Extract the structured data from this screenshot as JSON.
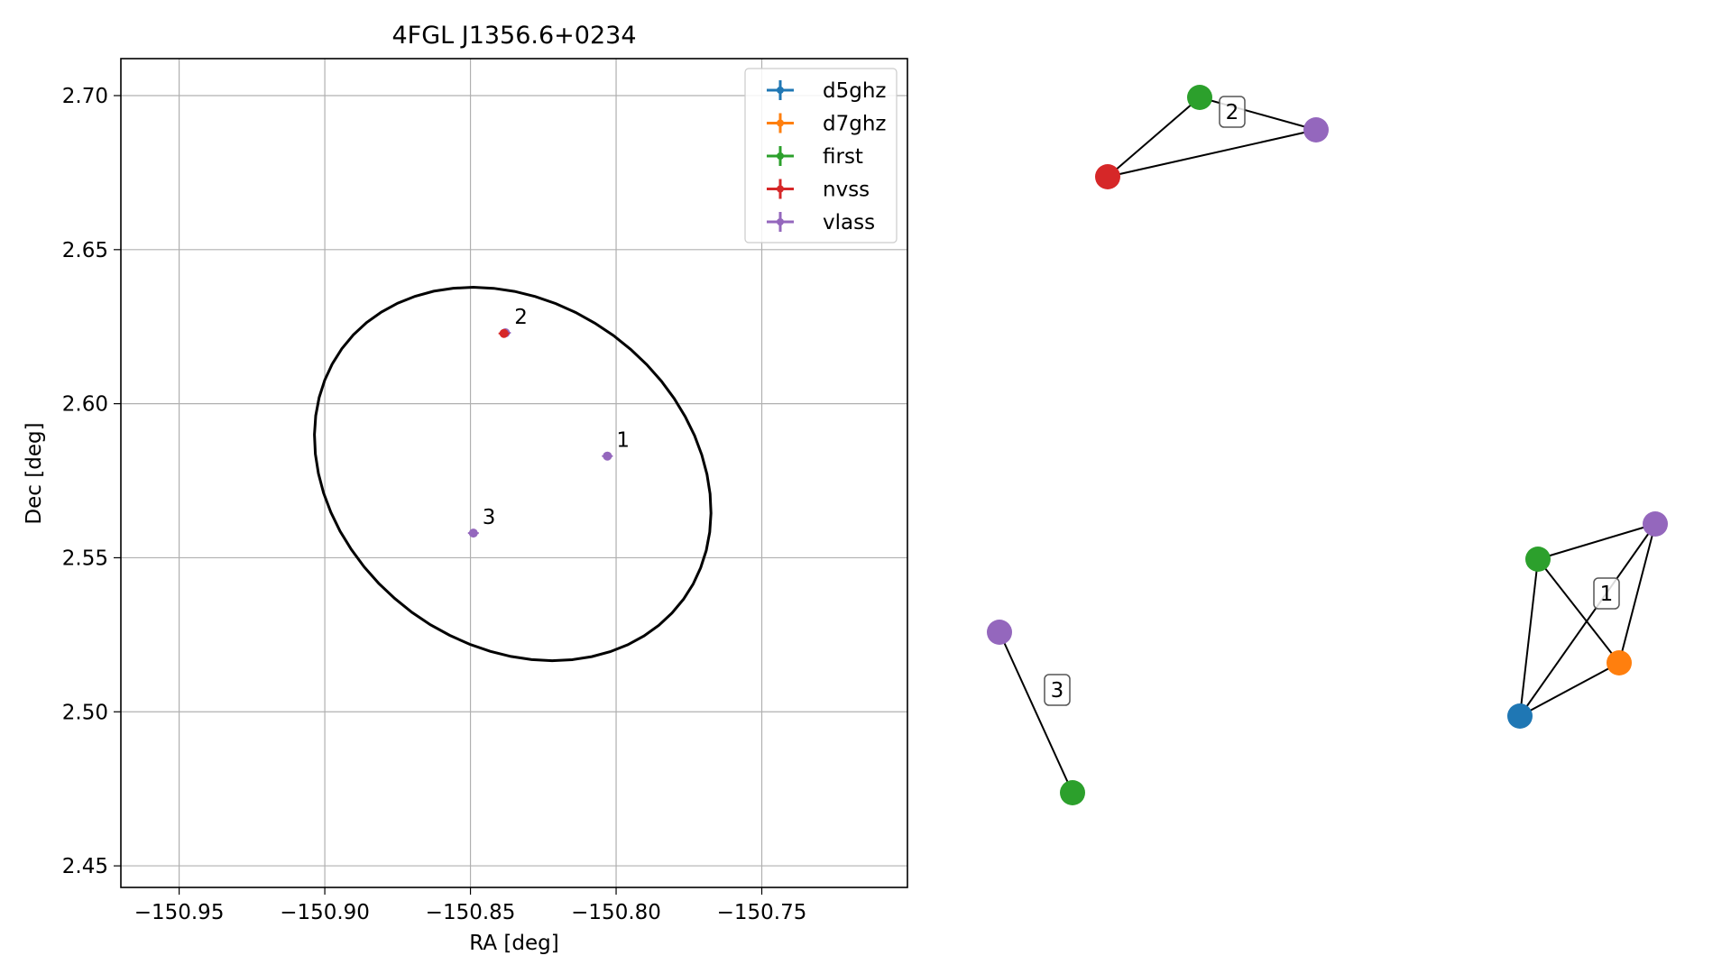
{
  "chart_data": [
    {
      "type": "scatter",
      "title": "4FGL J1356.6+0234",
      "xlabel": "RA [deg]",
      "ylabel": "Dec [deg]",
      "xlim": [
        -150.97,
        -150.7
      ],
      "ylim": [
        2.443,
        2.712
      ],
      "xticks": [
        -150.95,
        -150.9,
        -150.85,
        -150.8,
        -150.75
      ],
      "xtick_labels": [
        "−150.95",
        "−150.90",
        "−150.85",
        "−150.80",
        "−150.75"
      ],
      "yticks": [
        2.45,
        2.5,
        2.55,
        2.6,
        2.65,
        2.7
      ],
      "ytick_labels": [
        "2.45",
        "2.50",
        "2.55",
        "2.60",
        "2.65",
        "2.70"
      ],
      "grid": true,
      "legend_position": "top-right",
      "legend": [
        {
          "name": "d5ghz",
          "color": "#1f77b4"
        },
        {
          "name": "d7ghz",
          "color": "#ff7f0e"
        },
        {
          "name": "first",
          "color": "#2ca02c"
        },
        {
          "name": "nvss",
          "color": "#d62728"
        },
        {
          "name": "vlass",
          "color": "#9467bd"
        }
      ],
      "sources": [
        {
          "label": "1",
          "x": -150.803,
          "y": 2.583,
          "color": "#9467bd"
        },
        {
          "label": "2",
          "x": -150.838,
          "y": 2.623,
          "color": "#9467bd"
        },
        {
          "label": "2",
          "x": -150.8385,
          "y": 2.6228,
          "color": "#d62728"
        },
        {
          "label": "3",
          "x": -150.849,
          "y": 2.558,
          "color": "#9467bd"
        }
      ],
      "ellipse": {
        "ra_center": -150.8355,
        "dec_center": 2.5772,
        "color": "#000000"
      }
    },
    {
      "type": "network",
      "groups": [
        {
          "label": "2",
          "nodes": [
            {
              "id": "g2_first",
              "color": "#2ca02c"
            },
            {
              "id": "g2_vlass",
              "color": "#9467bd"
            },
            {
              "id": "g2_nvss",
              "color": "#d62728"
            }
          ],
          "edges": [
            [
              "g2_first",
              "g2_vlass"
            ],
            [
              "g2_first",
              "g2_nvss"
            ],
            [
              "g2_nvss",
              "g2_vlass"
            ]
          ]
        },
        {
          "label": "1",
          "nodes": [
            {
              "id": "g1_vlass",
              "color": "#9467bd"
            },
            {
              "id": "g1_first",
              "color": "#2ca02c"
            },
            {
              "id": "g1_d7ghz",
              "color": "#ff7f0e"
            },
            {
              "id": "g1_d5ghz",
              "color": "#1f77b4"
            }
          ],
          "edges": [
            [
              "g1_first",
              "g1_vlass"
            ],
            [
              "g1_first",
              "g1_d5ghz"
            ],
            [
              "g1_first",
              "g1_d7ghz"
            ],
            [
              "g1_vlass",
              "g1_d7ghz"
            ],
            [
              "g1_vlass",
              "g1_d5ghz"
            ],
            [
              "g1_d5ghz",
              "g1_d7ghz"
            ]
          ]
        },
        {
          "label": "3",
          "nodes": [
            {
              "id": "g3_vlass",
              "color": "#9467bd"
            },
            {
              "id": "g3_first",
              "color": "#2ca02c"
            }
          ],
          "edges": [
            [
              "g3_vlass",
              "g3_first"
            ]
          ]
        }
      ]
    }
  ]
}
